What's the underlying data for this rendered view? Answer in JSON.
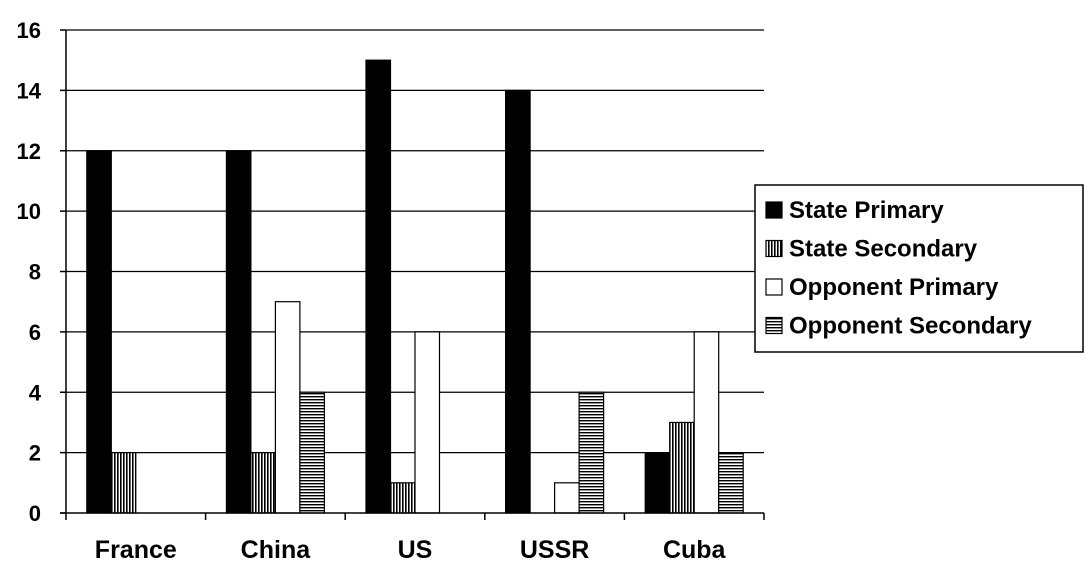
{
  "chart_data": {
    "type": "bar",
    "title": "",
    "xlabel": "",
    "ylabel": "",
    "categories": [
      "France",
      "China",
      "US",
      "USSR",
      "Cuba"
    ],
    "ylim": [
      0,
      16
    ],
    "yticks": [
      0,
      2,
      4,
      6,
      8,
      10,
      12,
      14,
      16
    ],
    "grid": true,
    "legend_position": "right",
    "series": [
      {
        "name": "State Primary",
        "values": [
          12,
          12,
          15,
          14,
          2
        ],
        "pattern": "solid"
      },
      {
        "name": "State Secondary",
        "values": [
          2,
          2,
          1,
          0,
          3
        ],
        "pattern": "vertical-lines"
      },
      {
        "name": "Opponent Primary",
        "values": [
          0,
          7,
          6,
          1,
          6
        ],
        "pattern": "white"
      },
      {
        "name": "Opponent Secondary",
        "values": [
          0,
          4,
          0,
          4,
          2
        ],
        "pattern": "horizontal-lines"
      }
    ]
  }
}
